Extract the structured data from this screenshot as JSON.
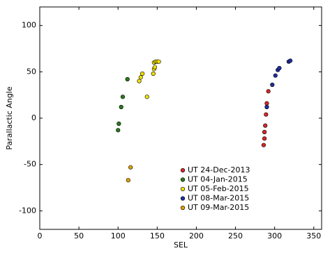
{
  "chart_data": {
    "type": "scatter",
    "x_label": "SEL",
    "y_label": "Parallactic Angle",
    "xlim": [
      0,
      360
    ],
    "ylim": [
      -120,
      120
    ],
    "xticks": [
      0,
      50,
      100,
      150,
      200,
      250,
      300,
      350
    ],
    "yticks": [
      -100,
      -50,
      0,
      50,
      100
    ],
    "legend_position": "lower center",
    "series": [
      {
        "name": "UT 24-Dec-2013",
        "color": "#d62728",
        "x": [
          286,
          287,
          287,
          288,
          289,
          290,
          292
        ],
        "values": [
          -29,
          -22,
          -15,
          -8,
          4,
          16,
          29
        ]
      },
      {
        "name": "UT 04-Jan-2015",
        "color": "#2a7a1a",
        "x": [
          100,
          101,
          104,
          106,
          112
        ],
        "values": [
          -13,
          -6,
          12,
          23,
          42
        ]
      },
      {
        "name": "UT 05-Feb-2015",
        "color": "#f0e000",
        "x": [
          127,
          129,
          131,
          137,
          145,
          146,
          147,
          146,
          148,
          150,
          152
        ],
        "values": [
          40,
          44,
          48,
          23,
          48,
          53,
          55,
          60,
          61,
          61,
          61
        ]
      },
      {
        "name": "UT 08-Mar-2015",
        "color": "#1f2fa0",
        "x": [
          290,
          297,
          301,
          304,
          306,
          318,
          320
        ],
        "values": [
          12,
          36,
          46,
          52,
          54,
          61,
          62
        ]
      },
      {
        "name": "UT 09-Mar-2015",
        "color": "#e0a000",
        "x": [
          113,
          116
        ],
        "values": [
          -67,
          -53
        ]
      }
    ]
  }
}
